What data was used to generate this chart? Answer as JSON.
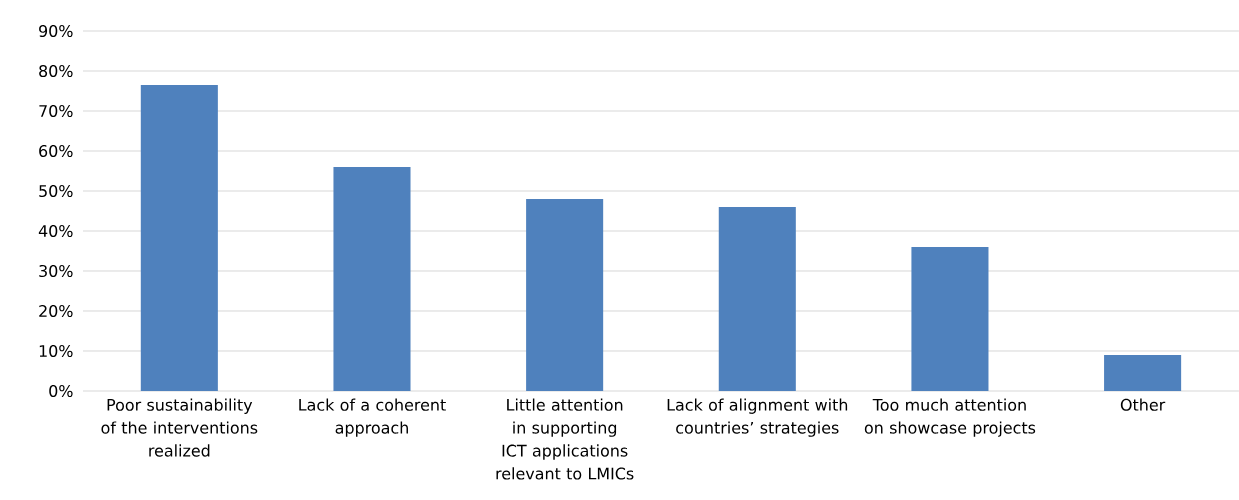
{
  "chart_data": {
    "type": "bar",
    "categories": [
      "Poor sustainability of the interventions realized",
      "Lack of a coherent approach",
      "Little attention in supporting ICT applications relevant to LMICs",
      "Lack of alignment with countries’ strategies",
      "Too much attention on showcase projects",
      "Other"
    ],
    "values": [
      76.5,
      56,
      48,
      46,
      36,
      9
    ],
    "color": "#4f81bd",
    "ylim": [
      0,
      90
    ],
    "yticks": [
      {
        "value": 0,
        "label": "0%"
      },
      {
        "value": 10,
        "label": "10%"
      },
      {
        "value": 20,
        "label": "20%"
      },
      {
        "value": 30,
        "label": "30%"
      },
      {
        "value": 40,
        "label": "40%"
      },
      {
        "value": 50,
        "label": "50%"
      },
      {
        "value": 60,
        "label": "60%"
      },
      {
        "value": 70,
        "label": "70%"
      },
      {
        "value": 80,
        "label": "80%"
      },
      {
        "value": 90,
        "label": "90%"
      }
    ],
    "grid": "y"
  }
}
